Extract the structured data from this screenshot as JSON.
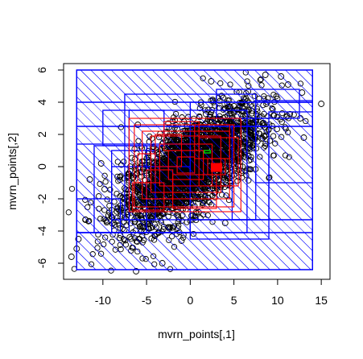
{
  "chart_data": {
    "type": "scatter",
    "title": "",
    "xlabel": "mvrn_points[,1]",
    "ylabel": "mvrn_points[,2]",
    "xlim": [
      -14.5,
      16.0
    ],
    "ylim": [
      -7.0,
      6.4
    ],
    "x_ticks": [
      -10,
      -5,
      0,
      5,
      10,
      15
    ],
    "x_tick_labels": [
      "-10",
      "-5",
      "0",
      "5",
      "10",
      "15"
    ],
    "y_ticks": [
      -6,
      -4,
      -2,
      0,
      2,
      4,
      6
    ],
    "y_tick_labels": [
      "-6",
      "-4",
      "-2",
      "0",
      "2",
      "4",
      "6"
    ],
    "grid": false,
    "colors": {
      "points": "#000000",
      "outer_boxes": "#0000ff",
      "inner_boxes": "#ff0000",
      "highlight_box": "#00cc00"
    },
    "points": {
      "distribution": "bivariate normal cloud, positively correlated",
      "outlier_points": [
        [
          15.0,
          3.9
        ],
        [
          -13.6,
          -5.6
        ],
        [
          -13.0,
          -5.1
        ],
        [
          -12.8,
          -4.5
        ],
        [
          -12.0,
          -3.3
        ],
        [
          -10.2,
          0.2
        ],
        [
          -9.8,
          -1.4
        ],
        [
          10.4,
          5.6
        ],
        [
          11.2,
          5.1
        ],
        [
          12.8,
          4.6
        ],
        [
          -3.2,
          -6.0
        ],
        [
          -6.2,
          -6.5
        ],
        [
          2.4,
          5.3
        ],
        [
          8.6,
          5.7
        ],
        [
          13.0,
          1.8
        ],
        [
          12.6,
          3.0
        ],
        [
          -11.5,
          -0.8
        ],
        [
          -1.0,
          -4.6
        ],
        [
          4.0,
          -3.5
        ],
        [
          -6.0,
          2.6
        ]
      ]
    },
    "outer_boxes": [
      {
        "x": [
          -13.0,
          14.0
        ],
        "y": [
          -6.4,
          6.0
        ],
        "hatched": true
      },
      {
        "x": [
          -13.0,
          14.0
        ],
        "y": [
          -6.4,
          -4.1
        ],
        "hatched": true
      },
      {
        "x": [
          -13.0,
          14.0
        ],
        "y": [
          4.0,
          6.0
        ],
        "hatched": true
      },
      {
        "x": [
          -13.0,
          14.0
        ],
        "y": [
          -4.1,
          2.5
        ],
        "hatched": false
      },
      {
        "x": [
          -13.0,
          14.0
        ],
        "y": [
          2.5,
          4.0
        ],
        "hatched": false
      },
      {
        "x": [
          -13.0,
          0.0
        ],
        "y": [
          -4.1,
          1.4
        ],
        "hatched": true
      },
      {
        "x": [
          0.0,
          14.0
        ],
        "y": [
          -3.3,
          4.0
        ],
        "hatched": true
      },
      {
        "x": [
          9.0,
          14.0
        ],
        "y": [
          -3.3,
          3.4
        ],
        "hatched": false
      },
      {
        "x": [
          -9.0,
          0.0
        ],
        "y": [
          -4.1,
          0.0
        ],
        "hatched": false
      },
      {
        "x": [
          -7.0,
          6.5
        ],
        "y": [
          -4.1,
          3.5
        ],
        "hatched": false
      },
      {
        "x": [
          -7.5,
          7.5
        ],
        "y": [
          -3.3,
          4.5
        ],
        "hatched": false
      },
      {
        "x": [
          -11.0,
          -5.0
        ],
        "y": [
          -4.1,
          1.3
        ],
        "hatched": false
      },
      {
        "x": [
          -9.0,
          -4.0
        ],
        "y": [
          -3.3,
          1.0
        ],
        "hatched": false
      },
      {
        "x": [
          4.8,
          9.0
        ],
        "y": [
          -3.3,
          2.5
        ],
        "hatched": false
      },
      {
        "x": [
          7.5,
          14.0
        ],
        "y": [
          -1.0,
          4.1
        ],
        "hatched": false
      },
      {
        "x": [
          0.0,
          9.0
        ],
        "y": [
          -4.5,
          -3.3
        ],
        "hatched": false
      },
      {
        "x": [
          -13.0,
          -8.0
        ],
        "y": [
          -4.1,
          -2.0
        ],
        "hatched": false
      },
      {
        "x": [
          -10.0,
          -3.0
        ],
        "y": [
          1.3,
          3.5
        ],
        "hatched": false
      },
      {
        "x": [
          3.0,
          12.5
        ],
        "y": [
          3.0,
          4.8
        ],
        "hatched": false
      }
    ],
    "inner_boxes": [
      {
        "x": [
          -7.0,
          5.8
        ],
        "y": [
          -2.8,
          3.0
        ]
      },
      {
        "x": [
          -6.4,
          5.0
        ],
        "y": [
          -2.5,
          2.6
        ]
      },
      {
        "x": [
          -5.5,
          4.5
        ],
        "y": [
          -2.0,
          2.2
        ]
      },
      {
        "x": [
          -4.5,
          3.5
        ],
        "y": [
          -1.6,
          1.9
        ]
      },
      {
        "x": [
          -3.5,
          2.5
        ],
        "y": [
          -1.2,
          1.4
        ]
      },
      {
        "x": [
          -2.5,
          1.5
        ],
        "y": [
          -0.8,
          1.0
        ]
      },
      {
        "x": [
          -1.5,
          0.5
        ],
        "y": [
          -0.4,
          0.6
        ]
      },
      {
        "x": [
          -5.0,
          -2.0
        ],
        "y": [
          -2.0,
          -0.2
        ]
      },
      {
        "x": [
          0.5,
          4.5
        ],
        "y": [
          0.5,
          2.6
        ]
      },
      {
        "x": [
          -6.6,
          -3.0
        ],
        "y": [
          -2.7,
          -1.0
        ]
      },
      {
        "x": [
          1.0,
          5.5
        ],
        "y": [
          -1.2,
          1.8
        ]
      },
      {
        "x": [
          -3.0,
          1.0
        ],
        "y": [
          1.0,
          2.8
        ]
      },
      {
        "x": [
          -2.0,
          3.0
        ],
        "y": [
          -2.6,
          -0.5
        ]
      },
      {
        "x": [
          -4.0,
          -1.0
        ],
        "y": [
          0.0,
          2.0
        ]
      },
      {
        "x": [
          2.0,
          4.0
        ],
        "y": [
          -0.5,
          0.5
        ]
      },
      {
        "x": [
          -6.0,
          -4.0
        ],
        "y": [
          -1.0,
          0.8
        ]
      }
    ],
    "highlight_boxes": [
      {
        "x": [
          1.6,
          2.3
        ],
        "y": [
          0.85,
          1.0
        ]
      }
    ],
    "red_fills": [
      {
        "x": [
          2.4,
          3.6
        ],
        "y": [
          -0.3,
          0.2
        ]
      }
    ]
  }
}
